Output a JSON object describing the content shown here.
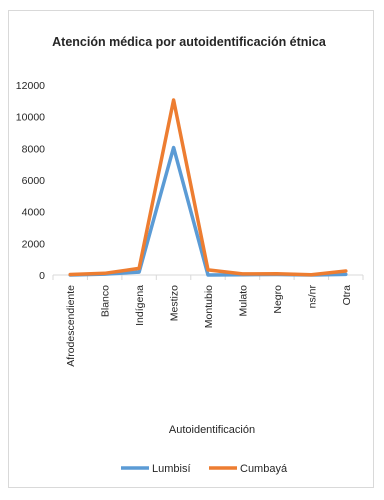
{
  "chart_data": {
    "type": "line",
    "title": "Atención médica por autoidentificación étnica",
    "xlabel": "Autoidentificación",
    "ylabel": "",
    "categories": [
      "Afrodescendiente",
      "Blanco",
      "Indígena",
      "Mestizo",
      "Montubio",
      "Mulato",
      "Negro",
      "ns/nr",
      "Otra"
    ],
    "ylim": [
      0,
      12000
    ],
    "yticks": [
      0,
      2000,
      4000,
      6000,
      8000,
      10000,
      12000
    ],
    "grid": false,
    "legend_position": "bottom",
    "series": [
      {
        "name": "Lumbisí",
        "color": "#5b9bd5",
        "values": [
          0,
          60,
          180,
          8050,
          0,
          20,
          30,
          0,
          40
        ]
      },
      {
        "name": "Cumbayá",
        "color": "#ed7d31",
        "values": [
          30,
          110,
          420,
          11050,
          320,
          70,
          80,
          10,
          250
        ]
      }
    ]
  }
}
